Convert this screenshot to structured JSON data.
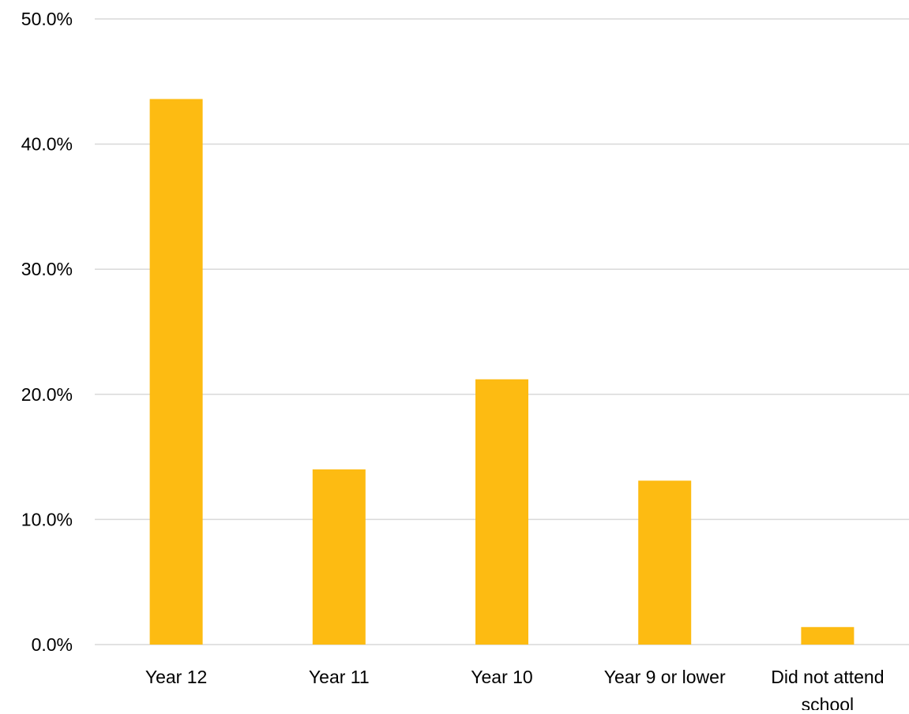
{
  "chart_data": {
    "type": "bar",
    "title": "",
    "xlabel": "",
    "ylabel": "",
    "categories": [
      "Year 12",
      "Year 11",
      "Year 10",
      "Year 9 or lower",
      "Did not attend school"
    ],
    "values": [
      43.6,
      14.0,
      21.2,
      13.1,
      1.4
    ],
    "value_unit": "%",
    "ylim": [
      0,
      50
    ],
    "y_ticks": [
      0,
      10,
      20,
      30,
      40,
      50
    ],
    "y_tick_labels": [
      "0.0%",
      "10.0%",
      "20.0%",
      "30.0%",
      "40.0%",
      "50.0%"
    ],
    "grid": true,
    "legend": "none",
    "colors": {
      "bar": "#FDBB12",
      "grid": "#D9D9D9",
      "text": "#000000"
    }
  }
}
